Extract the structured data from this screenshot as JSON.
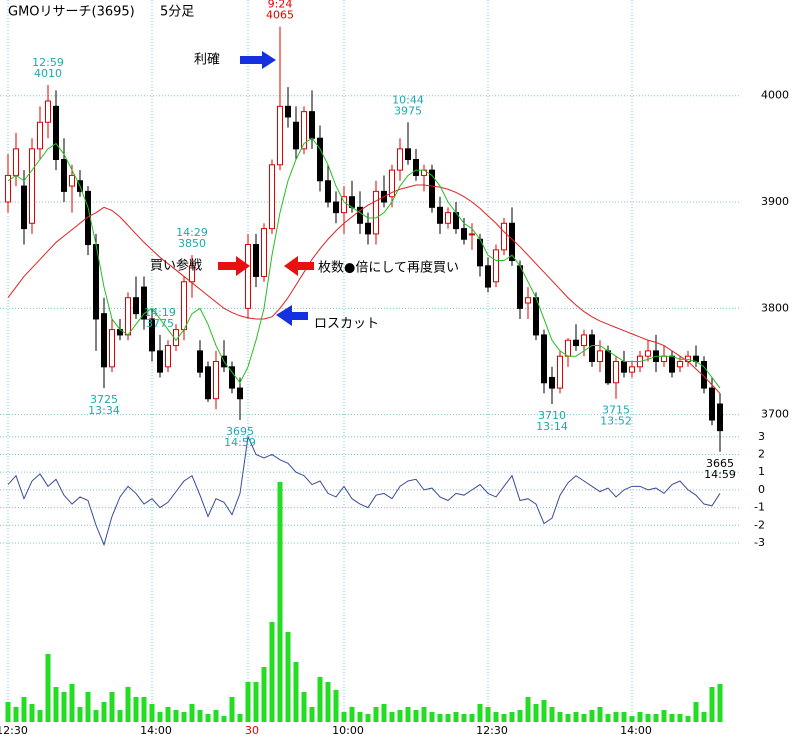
{
  "chart_data": {
    "type": "candlestick",
    "title": "GMOリサーチ(3695)",
    "subtitle": "5分足",
    "categories": [
      "12:30",
      null,
      null,
      null,
      null,
      null,
      null,
      null,
      null,
      null,
      null,
      null,
      null,
      null,
      null,
      null,
      null,
      null,
      "14:00",
      null,
      null,
      null,
      null,
      null,
      null,
      null,
      null,
      null,
      null,
      null,
      "30",
      null,
      null,
      null,
      null,
      null,
      null,
      null,
      null,
      null,
      null,
      null,
      "10:00",
      null,
      null,
      null,
      null,
      null,
      null,
      null,
      null,
      null,
      null,
      null,
      null,
      null,
      null,
      null,
      null,
      null,
      "12:30",
      null,
      null,
      null,
      null,
      null,
      null,
      null,
      null,
      null,
      null,
      null,
      null,
      null,
      null,
      null,
      null,
      null,
      "14:00",
      null,
      null,
      null,
      null,
      null,
      null,
      null,
      null,
      null,
      null,
      null
    ],
    "category_highlight": {
      "index": 30,
      "color": "#e60000"
    },
    "ylim": [
      3679,
      4090
    ],
    "yticks": [
      3700,
      3800,
      3900,
      4000
    ],
    "grid": true,
    "up_color": "#e00000",
    "down_color": "#000000",
    "open": [
      3900,
      3925,
      3915,
      3880,
      3950,
      3975,
      3990,
      3940,
      3915,
      3920,
      3910,
      3860,
      3795,
      3745,
      3780,
      3775,
      3810,
      3820,
      3790,
      3760,
      3745,
      3765,
      3780,
      3825,
      3760,
      3745,
      3715,
      3755,
      3745,
      3725,
      3800,
      3860,
      3830,
      3875,
      3935,
      3990,
      3975,
      3950,
      3985,
      3960,
      3920,
      3900,
      3890,
      3905,
      3895,
      3880,
      3870,
      3910,
      3905,
      3930,
      3950,
      3940,
      3925,
      3930,
      3895,
      3880,
      3890,
      3875,
      3870,
      3865,
      3840,
      3825,
      3855,
      3880,
      3840,
      3805,
      3810,
      3775,
      3735,
      3725,
      3755,
      3770,
      3765,
      3775,
      3750,
      3760,
      3730,
      3750,
      3740,
      3745,
      3755,
      3760,
      3750,
      3755,
      3745,
      3750,
      3755,
      3750,
      3725,
      3710
    ],
    "high": [
      3945,
      3965,
      3930,
      3960,
      3990,
      4010,
      4005,
      3960,
      3935,
      3930,
      3915,
      3870,
      3810,
      3790,
      3790,
      3815,
      3830,
      3830,
      3800,
      3775,
      3770,
      3785,
      3830,
      3850,
      3770,
      3750,
      3760,
      3770,
      3750,
      3735,
      3870,
      3870,
      3880,
      3940,
      4065,
      4008,
      3990,
      3990,
      4005,
      3972,
      3935,
      3910,
      3915,
      3920,
      3910,
      3890,
      3920,
      3925,
      3935,
      3960,
      3975,
      3950,
      3935,
      3935,
      3905,
      3895,
      3900,
      3885,
      3880,
      3870,
      3848,
      3860,
      3885,
      3895,
      3845,
      3820,
      3815,
      3780,
      3745,
      3760,
      3772,
      3785,
      3780,
      3780,
      3770,
      3765,
      3755,
      3760,
      3750,
      3760,
      3770,
      3775,
      3765,
      3760,
      3755,
      3760,
      3765,
      3755,
      3735,
      3720
    ],
    "low": [
      3890,
      3915,
      3860,
      3870,
      3940,
      3960,
      3930,
      3900,
      3890,
      3905,
      3850,
      3760,
      3725,
      3740,
      3770,
      3770,
      3790,
      3780,
      3750,
      3735,
      3740,
      3760,
      3770,
      3810,
      3735,
      3712,
      3705,
      3740,
      3720,
      3695,
      3790,
      3820,
      3825,
      3870,
      3930,
      3970,
      3940,
      3945,
      3950,
      3910,
      3895,
      3880,
      3870,
      3890,
      3870,
      3860,
      3860,
      3895,
      3895,
      3920,
      3935,
      3920,
      3910,
      3890,
      3870,
      3875,
      3870,
      3860,
      3855,
      3830,
      3815,
      3820,
      3850,
      3840,
      3790,
      3790,
      3770,
      3720,
      3710,
      3720,
      3745,
      3760,
      3755,
      3745,
      3740,
      3728,
      3715,
      3735,
      3735,
      3740,
      3750,
      3740,
      3745,
      3735,
      3740,
      3745,
      3745,
      3720,
      3690,
      3665
    ],
    "close": [
      3925,
      3950,
      3875,
      3950,
      3975,
      3995,
      3940,
      3910,
      3925,
      3910,
      3860,
      3790,
      3745,
      3780,
      3775,
      3810,
      3795,
      3790,
      3760,
      3740,
      3765,
      3780,
      3825,
      3840,
      3740,
      3715,
      3750,
      3745,
      3725,
      3715,
      3860,
      3830,
      3875,
      3935,
      3990,
      3980,
      3950,
      3985,
      3960,
      3920,
      3900,
      3890,
      3905,
      3895,
      3880,
      3870,
      3910,
      3900,
      3930,
      3950,
      3940,
      3925,
      3930,
      3895,
      3880,
      3890,
      3875,
      3865,
      3870,
      3840,
      3820,
      3855,
      3880,
      3845,
      3800,
      3810,
      3775,
      3730,
      3725,
      3755,
      3770,
      3765,
      3775,
      3750,
      3760,
      3730,
      3750,
      3740,
      3745,
      3755,
      3760,
      3750,
      3755,
      3740,
      3750,
      3755,
      3750,
      3725,
      3695,
      3685
    ],
    "ma_short": {
      "color": "#22c022",
      "values": [
        3920,
        3925,
        3920,
        3930,
        3940,
        3950,
        3955,
        3945,
        3930,
        3915,
        3895,
        3860,
        3820,
        3790,
        3780,
        3775,
        3785,
        3795,
        3800,
        3790,
        3780,
        3770,
        3780,
        3795,
        3800,
        3785,
        3765,
        3750,
        3740,
        3730,
        3745,
        3770,
        3800,
        3850,
        3890,
        3920,
        3940,
        3955,
        3960,
        3950,
        3935,
        3915,
        3900,
        3895,
        3890,
        3885,
        3885,
        3890,
        3900,
        3915,
        3925,
        3930,
        3930,
        3925,
        3915,
        3900,
        3890,
        3880,
        3875,
        3865,
        3850,
        3845,
        3845,
        3850,
        3840,
        3825,
        3810,
        3790,
        3770,
        3760,
        3755,
        3755,
        3760,
        3765,
        3765,
        3760,
        3755,
        3750,
        3750,
        3750,
        3752,
        3755,
        3755,
        3755,
        3752,
        3752,
        3750,
        3745,
        3735,
        3725
      ]
    },
    "ma_long": {
      "color": "#e02020",
      "values": [
        3810,
        3820,
        3830,
        3838,
        3846,
        3854,
        3862,
        3868,
        3874,
        3880,
        3886,
        3890,
        3895,
        3892,
        3886,
        3878,
        3870,
        3862,
        3855,
        3848,
        3842,
        3836,
        3830,
        3824,
        3818,
        3812,
        3806,
        3800,
        3796,
        3793,
        3791,
        3790,
        3790,
        3792,
        3800,
        3810,
        3822,
        3834,
        3846,
        3856,
        3865,
        3873,
        3880,
        3886,
        3892,
        3897,
        3901,
        3905,
        3909,
        3912,
        3914,
        3916,
        3916,
        3915,
        3914,
        3912,
        3909,
        3905,
        3900,
        3894,
        3887,
        3880,
        3872,
        3865,
        3858,
        3850,
        3842,
        3834,
        3826,
        3818,
        3810,
        3803,
        3797,
        3792,
        3788,
        3785,
        3782,
        3779,
        3776,
        3773,
        3770,
        3768,
        3765,
        3760,
        3755,
        3750,
        3743,
        3736,
        3728,
        3720
      ]
    },
    "oscillator": {
      "color": "#3a4a99",
      "ylim": [
        -3.2,
        3.1
      ],
      "yticks": [
        3,
        2,
        1,
        0,
        -1,
        -2,
        -3
      ],
      "values": [
        0.3,
        0.8,
        -0.5,
        0.5,
        0.9,
        0.2,
        0.6,
        -0.3,
        -0.8,
        -0.4,
        -0.6,
        -2,
        -3.1,
        -1.5,
        -0.4,
        0.2,
        -0.2,
        -0.8,
        -0.5,
        -1,
        -0.7,
        -0.1,
        0.5,
        0.8,
        -0.3,
        -1.5,
        -0.5,
        -0.7,
        -1.4,
        -0.2,
        3,
        2,
        1.8,
        2,
        1.7,
        1.5,
        1,
        0.8,
        0.3,
        0.5,
        -0.2,
        -0.4,
        0.2,
        -0.5,
        -0.8,
        -1,
        -0.3,
        -0.2,
        -0.5,
        0.2,
        0.5,
        0.6,
        0,
        0.1,
        -0.4,
        -0.6,
        -0.2,
        -0.3,
        0,
        0.3,
        -0.2,
        -0.4,
        0.2,
        0.8,
        -0.6,
        -0.5,
        -0.8,
        -1.9,
        -1.6,
        -0.3,
        0.4,
        0.8,
        0.5,
        0.2,
        -0.1,
        0.1,
        -0.4,
        0,
        0.2,
        0.2,
        0,
        0.1,
        -0.2,
        0.3,
        0.5,
        0,
        -0.3,
        -0.8,
        -0.9,
        -0.2
      ]
    },
    "volume": {
      "color": "#22dd22",
      "values": [
        20,
        15,
        25,
        18,
        12,
        68,
        35,
        30,
        38,
        15,
        30,
        12,
        20,
        30,
        12,
        35,
        25,
        25,
        18,
        10,
        15,
        12,
        10,
        18,
        12,
        8,
        12,
        6,
        25,
        8,
        40,
        40,
        55,
        100,
        240,
        90,
        60,
        30,
        15,
        45,
        40,
        32,
        10,
        15,
        10,
        8,
        15,
        18,
        10,
        12,
        15,
        12,
        15,
        10,
        8,
        8,
        10,
        8,
        8,
        18,
        15,
        10,
        8,
        10,
        12,
        25,
        18,
        22,
        15,
        10,
        8,
        10,
        8,
        12,
        15,
        8,
        10,
        10,
        6,
        10,
        8,
        8,
        12,
        8,
        8,
        6,
        20,
        10,
        35,
        38
      ]
    },
    "extremes": [
      {
        "time": "12:59",
        "price": 4010,
        "color": "#20a8b0"
      },
      {
        "time": "13:34",
        "price": 3725,
        "color": "#20a8b0"
      },
      {
        "time": "14:29",
        "price": 3850,
        "color": "#20a8b0"
      },
      {
        "time": "14:59",
        "price": 3695,
        "color": "#20a8b0"
      },
      {
        "time": "9:24",
        "price": 4065,
        "color": "#e60000"
      },
      {
        "time": "10:44",
        "price": 3975,
        "color": "#20a8b0"
      },
      {
        "time": "13:14",
        "price": 3710,
        "color": "#20a8b0"
      },
      {
        "time": "13:52",
        "price": 3715,
        "color": "#20a8b0"
      },
      {
        "time": "14:19",
        "price": 3775,
        "color": "#20a8b0"
      },
      {
        "time": "14:59",
        "price": 3665,
        "color": "#000000"
      }
    ],
    "callouts": [
      "利確",
      "買い参戦",
      "枚数●倍にして再度買い",
      "ロスカット"
    ]
  }
}
